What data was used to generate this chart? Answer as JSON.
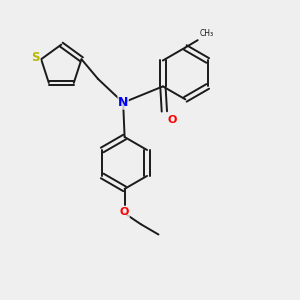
{
  "background_color": "#efefef",
  "bond_color": "#1a1a1a",
  "N_color": "#0000ff",
  "O_color": "#ff0000",
  "S_color": "#b8b800",
  "figsize": [
    3.0,
    3.0
  ],
  "dpi": 100,
  "xlim": [
    0,
    10
  ],
  "ylim": [
    0,
    10
  ],
  "bond_lw": 1.4,
  "ring_r": 0.88
}
